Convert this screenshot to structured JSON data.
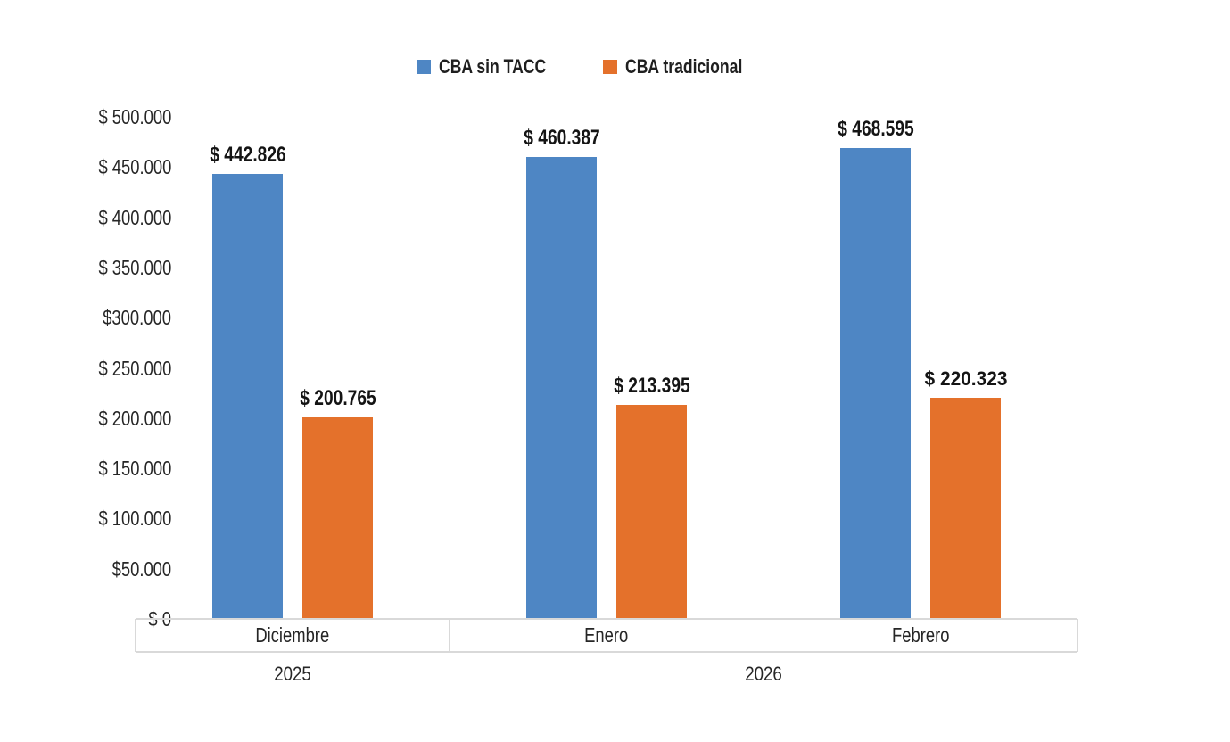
{
  "page": {
    "background": "#FFFFFF"
  },
  "legend": {
    "items": [
      {
        "label": "CBA sin TACC",
        "color": "#4E86C4"
      },
      {
        "label": "CBA tradicional",
        "color": "#E4712B"
      }
    ]
  },
  "chart_data": {
    "type": "bar",
    "categories": [
      "Diciembre",
      "Enero",
      "Febrero"
    ],
    "category_groups": [
      {
        "label": "2025",
        "span": 1
      },
      {
        "label": "2026",
        "span": 2
      }
    ],
    "series": [
      {
        "name": "CBA sin TACC",
        "color": "#4E86C4",
        "values": [
          442826,
          460387,
          468595
        ],
        "data_labels": [
          "$ 442.826",
          "$ 460.387",
          "$ 468.595"
        ]
      },
      {
        "name": "CBA tradicional",
        "color": "#E4712B",
        "values": [
          200765,
          213395,
          220323
        ],
        "data_labels": [
          "$ 200.765",
          "$ 213.395",
          "$ 220.323"
        ]
      }
    ],
    "label_style_overrides": [
      {
        "series": 1,
        "index": 2,
        "style": "wide"
      }
    ],
    "y_axis": {
      "min": 0,
      "max": 500000,
      "step": 50000,
      "tick_labels": [
        "$ 0",
        "$50.000",
        "$ 100.000",
        "$ 150.000",
        "$ 200.000",
        "$ 250.000",
        "$300.000",
        "$ 350.000",
        "$ 400.000",
        "$ 450.000",
        "$ 500.000"
      ]
    },
    "grid": false,
    "legend_position": "top-center",
    "axis_band_border_color": "#D9D9D9",
    "text_color": "#262626",
    "data_label_color": "#141414"
  }
}
